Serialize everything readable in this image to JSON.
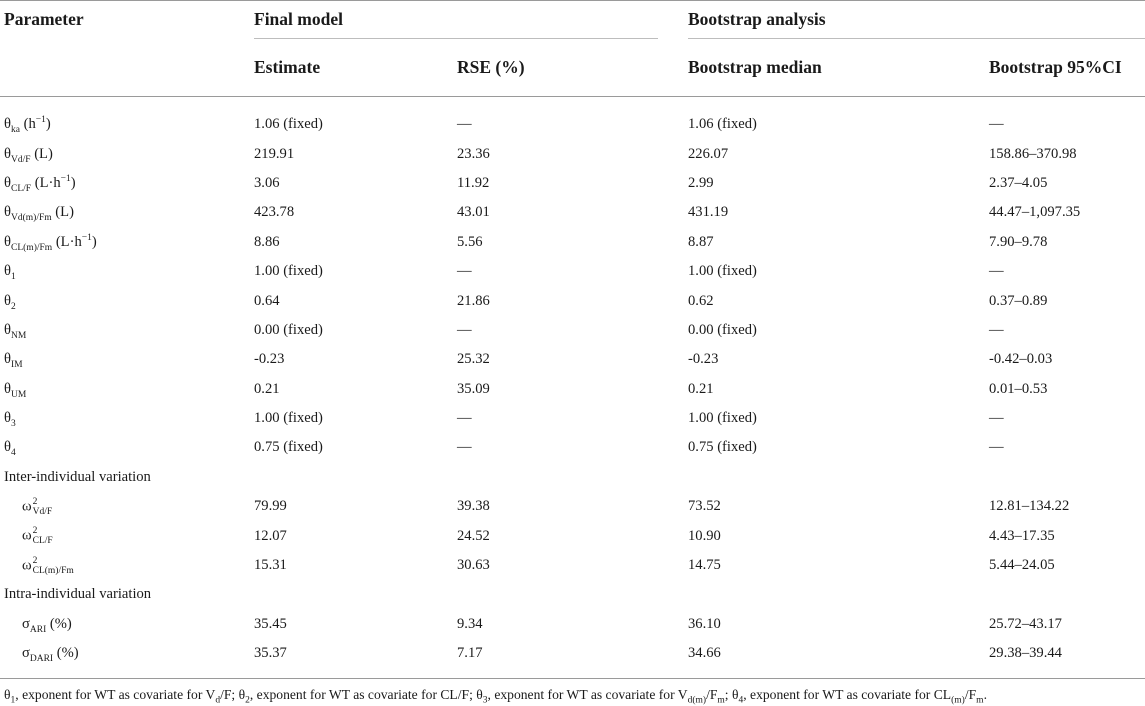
{
  "header": {
    "parameter": "Parameter",
    "final_model": "Final model",
    "bootstrap_analysis": "Bootstrap analysis",
    "estimate": "Estimate",
    "rse": "RSE (%)",
    "bootstrap_median": "Bootstrap median",
    "bootstrap_ci": "Bootstrap 95%CI"
  },
  "rows": [
    {
      "base": "θ",
      "sub": "ka",
      "suffix": " (h",
      "sup": "−1",
      "suffix2": ")",
      "estimate": "1.06 (fixed)",
      "rse": "—",
      "median": "1.06 (fixed)",
      "ci": "—"
    },
    {
      "base": "θ",
      "sub": "Vd/F",
      "suffix": " (L)",
      "sup": "",
      "suffix2": "",
      "estimate": "219.91",
      "rse": "23.36",
      "median": "226.07",
      "ci": "158.86–370.98"
    },
    {
      "base": "θ",
      "sub": "CL/F",
      "suffix": " (L·h",
      "sup": "−1",
      "suffix2": ")",
      "estimate": "3.06",
      "rse": "11.92",
      "median": "2.99",
      "ci": "2.37–4.05"
    },
    {
      "base": "θ",
      "sub": "Vd(m)/Fm",
      "suffix": " (L)",
      "sup": "",
      "suffix2": "",
      "estimate": "423.78",
      "rse": "43.01",
      "median": "431.19",
      "ci": "44.47–1,097.35"
    },
    {
      "base": "θ",
      "sub": "CL(m)/Fm",
      "suffix": " (L·h",
      "sup": "−1",
      "suffix2": ")",
      "estimate": "8.86",
      "rse": "5.56",
      "median": "8.87",
      "ci": "7.90–9.78"
    },
    {
      "base": "θ",
      "sub": "1",
      "suffix": "",
      "sup": "",
      "suffix2": "",
      "estimate": "1.00 (fixed)",
      "rse": "—",
      "median": "1.00 (fixed)",
      "ci": "—"
    },
    {
      "base": "θ",
      "sub": "2",
      "suffix": "",
      "sup": "",
      "suffix2": "",
      "estimate": "0.64",
      "rse": "21.86",
      "median": "0.62",
      "ci": "0.37–0.89"
    },
    {
      "base": "θ",
      "sub": "NM",
      "suffix": "",
      "sup": "",
      "suffix2": "",
      "estimate": "0.00 (fixed)",
      "rse": "—",
      "median": "0.00 (fixed)",
      "ci": "—"
    },
    {
      "base": "θ",
      "sub": "IM",
      "suffix": "",
      "sup": "",
      "suffix2": "",
      "estimate": "-0.23",
      "rse": "25.32",
      "median": "-0.23",
      "ci": "-0.42–0.03"
    },
    {
      "base": "θ",
      "sub": "UM",
      "suffix": "",
      "sup": "",
      "suffix2": "",
      "estimate": "0.21",
      "rse": "35.09",
      "median": "0.21",
      "ci": "0.01–0.53"
    },
    {
      "base": "θ",
      "sub": "3",
      "suffix": "",
      "sup": "",
      "suffix2": "",
      "estimate": "1.00 (fixed)",
      "rse": "—",
      "median": "1.00 (fixed)",
      "ci": "—"
    },
    {
      "base": "θ",
      "sub": "4",
      "suffix": "",
      "sup": "",
      "suffix2": "",
      "estimate": "0.75 (fixed)",
      "rse": "—",
      "median": "0.75 (fixed)",
      "ci": "—"
    }
  ],
  "inter_group": {
    "label": "Inter-individual variation",
    "rows": [
      {
        "base": "ω",
        "sup": "2",
        "sub": "Vd/F",
        "estimate": "79.99",
        "rse": "39.38",
        "median": "73.52",
        "ci": "12.81–134.22"
      },
      {
        "base": "ω",
        "sup": "2",
        "sub": "CL/F",
        "estimate": "12.07",
        "rse": "24.52",
        "median": "10.90",
        "ci": "4.43–17.35"
      },
      {
        "base": "ω",
        "sup": "2",
        "sub": "CL(m)/Fm",
        "estimate": "15.31",
        "rse": "30.63",
        "median": "14.75",
        "ci": "5.44–24.05"
      }
    ]
  },
  "intra_group": {
    "label": "Intra-individual variation",
    "rows": [
      {
        "base": "σ",
        "sub": "ARI",
        "suffix": " (%)",
        "estimate": "35.45",
        "rse": "9.34",
        "median": "36.10",
        "ci": "25.72–43.17"
      },
      {
        "base": "σ",
        "sub": "DARI",
        "suffix": " (%)",
        "estimate": "35.37",
        "rse": "7.17",
        "median": "34.66",
        "ci": "29.38–39.44"
      }
    ]
  },
  "footnote": {
    "p1": "θ",
    "s1": "1",
    "t1": ", exponent for WT as covariate for V",
    "s2": "d",
    "t2": "/F; θ",
    "s3": "2",
    "t3": ", exponent for WT as covariate for CL/F; θ",
    "s4": "3",
    "t4": ", exponent for WT as covariate for V",
    "s5": "d(m)",
    "t5": "/F",
    "s6": "m",
    "t6": "; θ",
    "s7": "4",
    "t7": ", exponent for WT as covariate for CL",
    "s8": "(m)",
    "t8": "/F",
    "s9": "m",
    "t9": "."
  }
}
